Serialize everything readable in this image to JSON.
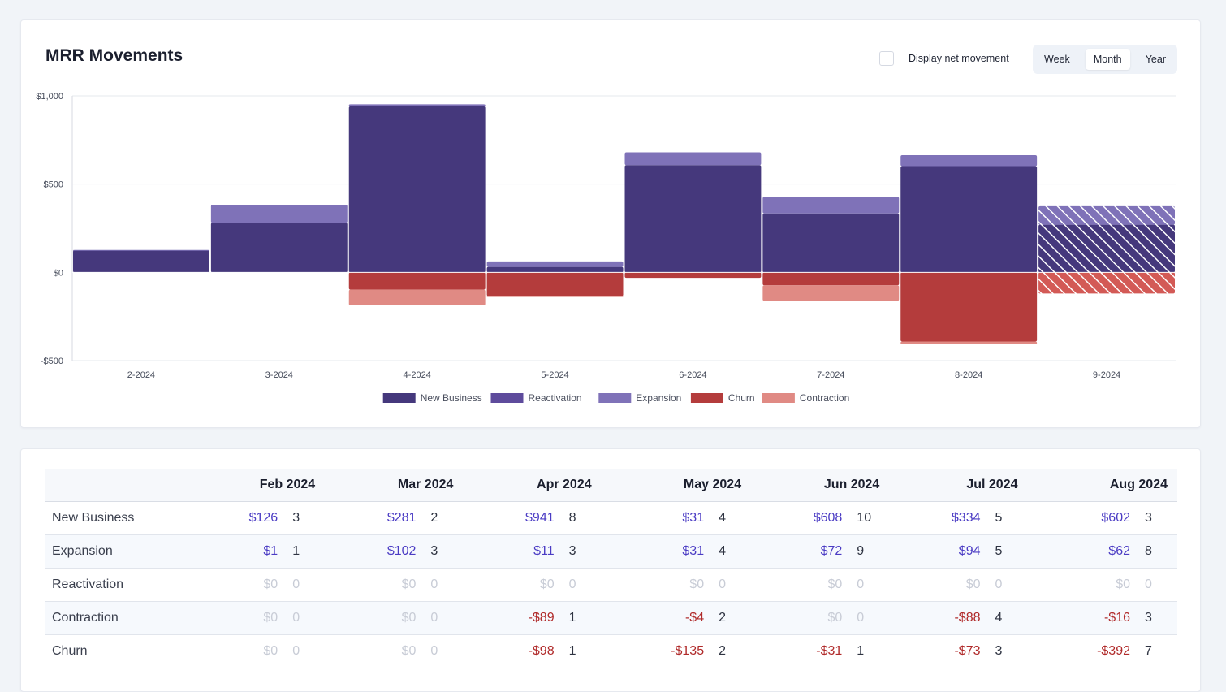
{
  "header": {
    "title": "MRR Movements",
    "net_movement_label": "Display net movement",
    "periods": [
      "Week",
      "Month",
      "Year"
    ],
    "active_period": "Month"
  },
  "colors": {
    "new_business": "#45387c",
    "reactivation": "#5e4b9c",
    "expansion": "#7f72b8",
    "churn": "#b43c3c",
    "contraction": "#e08a84",
    "grid": "#e6e8ee"
  },
  "chart_data": {
    "type": "bar",
    "stacked": true,
    "ylim": [
      -500,
      1000
    ],
    "yticks": [
      1000,
      500,
      0,
      -500
    ],
    "ytick_labels": [
      "$1,000",
      "$500",
      "$0",
      "-$500"
    ],
    "categories": [
      "2-2024",
      "3-2024",
      "4-2024",
      "5-2024",
      "6-2024",
      "7-2024",
      "8-2024",
      "9-2024"
    ],
    "series": [
      {
        "name": "New Business",
        "key": "new_business",
        "values": [
          126,
          281,
          941,
          31,
          608,
          334,
          602,
          270
        ]
      },
      {
        "name": "Reactivation",
        "key": "reactivation",
        "values": [
          0,
          0,
          0,
          0,
          0,
          0,
          0,
          0
        ]
      },
      {
        "name": "Expansion",
        "key": "expansion",
        "values": [
          1,
          102,
          11,
          31,
          72,
          94,
          62,
          105
        ]
      },
      {
        "name": "Churn",
        "key": "churn",
        "values": [
          0,
          0,
          -98,
          -135,
          -31,
          -73,
          -392,
          -120
        ]
      },
      {
        "name": "Contraction",
        "key": "contraction",
        "values": [
          0,
          0,
          -89,
          -4,
          0,
          -88,
          -16,
          0
        ]
      }
    ],
    "projected_category": "9-2024",
    "legend_position": "bottom-center"
  },
  "table": {
    "months": [
      "Feb 2024",
      "Mar 2024",
      "Apr 2024",
      "May 2024",
      "Jun 2024",
      "Jul 2024",
      "Aug 2024"
    ],
    "rows": [
      {
        "label": "New Business",
        "cells": [
          [
            "$126",
            "3"
          ],
          [
            "$281",
            "2"
          ],
          [
            "$941",
            "8"
          ],
          [
            "$31",
            "4"
          ],
          [
            "$608",
            "10"
          ],
          [
            "$334",
            "5"
          ],
          [
            "$602",
            "3"
          ]
        ]
      },
      {
        "label": "Expansion",
        "cells": [
          [
            "$1",
            "1"
          ],
          [
            "$102",
            "3"
          ],
          [
            "$11",
            "3"
          ],
          [
            "$31",
            "4"
          ],
          [
            "$72",
            "9"
          ],
          [
            "$94",
            "5"
          ],
          [
            "$62",
            "8"
          ]
        ]
      },
      {
        "label": "Reactivation",
        "cells": [
          [
            "$0",
            "0"
          ],
          [
            "$0",
            "0"
          ],
          [
            "$0",
            "0"
          ],
          [
            "$0",
            "0"
          ],
          [
            "$0",
            "0"
          ],
          [
            "$0",
            "0"
          ],
          [
            "$0",
            "0"
          ]
        ]
      },
      {
        "label": "Contraction",
        "cells": [
          [
            "$0",
            "0"
          ],
          [
            "$0",
            "0"
          ],
          [
            "-$89",
            "1"
          ],
          [
            "-$4",
            "2"
          ],
          [
            "$0",
            "0"
          ],
          [
            "-$88",
            "4"
          ],
          [
            "-$16",
            "3"
          ]
        ]
      },
      {
        "label": "Churn",
        "cells": [
          [
            "$0",
            "0"
          ],
          [
            "$0",
            "0"
          ],
          [
            "-$98",
            "1"
          ],
          [
            "-$135",
            "2"
          ],
          [
            "-$31",
            "1"
          ],
          [
            "-$73",
            "3"
          ],
          [
            "-$392",
            "7"
          ]
        ]
      }
    ]
  }
}
